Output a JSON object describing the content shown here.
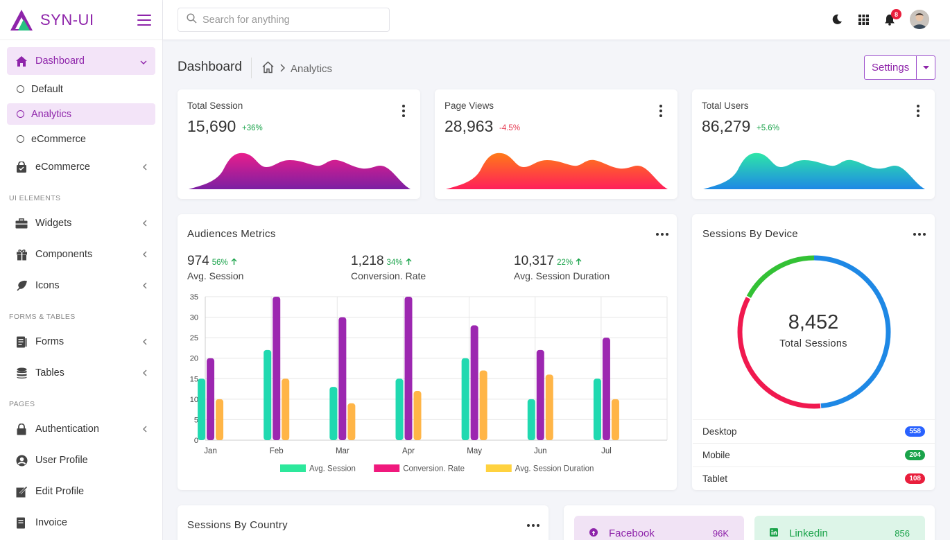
{
  "brand": {
    "name": "SYN-UI"
  },
  "sidebar": {
    "dashboard": {
      "label": "Dashboard"
    },
    "sub_items": [
      {
        "label": "Default"
      },
      {
        "label": "Analytics"
      },
      {
        "label": "eCommerce"
      }
    ],
    "ecommerce": {
      "label": "eCommerce"
    },
    "sections": [
      "UI ELEMENTS",
      "FORMS & TABLES",
      "PAGES"
    ],
    "ui_items": [
      {
        "label": "Widgets"
      },
      {
        "label": "Components"
      },
      {
        "label": "Icons"
      }
    ],
    "form_items": [
      {
        "label": "Forms"
      },
      {
        "label": "Tables"
      }
    ],
    "page_items": [
      {
        "label": "Authentication"
      },
      {
        "label": "User Profile"
      },
      {
        "label": "Edit Profile"
      },
      {
        "label": "Invoice"
      }
    ]
  },
  "search": {
    "placeholder": "Search for anything"
  },
  "topbar": {
    "notification_count": "8"
  },
  "header": {
    "title": "Dashboard",
    "breadcrumb": "Analytics",
    "settings_label": "Settings"
  },
  "stats": [
    {
      "label": "Total Session",
      "value": "15,690",
      "change": "+36%",
      "change_color": "#1aa34a",
      "gradient": [
        "#e91e8c",
        "#7b1fa2"
      ]
    },
    {
      "label": "Page Views",
      "value": "28,963",
      "change": "-4.5%",
      "change_color": "#e53950",
      "gradient": [
        "#ff7a18",
        "#ff1f5a"
      ]
    },
    {
      "label": "Total Users",
      "value": "86,279",
      "change": "+5.6%",
      "change_color": "#1aa34a",
      "gradient": [
        "#2ee6a8",
        "#1e88e5"
      ]
    }
  ],
  "audience": {
    "title": "Audiences Metrics",
    "metrics": [
      {
        "value": "974",
        "pct": "56%",
        "label": "Avg. Session"
      },
      {
        "value": "1,218",
        "pct": "34%",
        "label": "Conversion. Rate"
      },
      {
        "value": "10,317",
        "pct": "22%",
        "label": "Avg. Session Duration"
      }
    ]
  },
  "chart_data": {
    "type": "bar",
    "categories": [
      "Jan",
      "Feb",
      "Mar",
      "Apr",
      "May",
      "Jun",
      "Jul"
    ],
    "series": [
      {
        "name": "Avg. Session",
        "values": [
          15,
          22,
          13,
          15,
          20,
          10,
          15
        ],
        "color": "#20d9b0"
      },
      {
        "name": "Conversion. Rate",
        "values": [
          20,
          35,
          30,
          35,
          28,
          22,
          25
        ],
        "color": "#9c27b0"
      },
      {
        "name": "Avg. Session Duration",
        "values": [
          10,
          15,
          9,
          12,
          17,
          16,
          10
        ],
        "color": "#ffb547"
      }
    ],
    "legend_swatches": [
      "#2de89c",
      "#f0197d",
      "#ffd23f"
    ],
    "yticks": [
      "0",
      "5",
      "10",
      "15",
      "20",
      "25",
      "30",
      "35"
    ],
    "ylim": [
      0,
      35
    ],
    "grid": true,
    "legend": "bottom"
  },
  "device": {
    "title": "Sessions By Device",
    "total_value": "8,452",
    "total_label": "Total Sessions",
    "rows": [
      {
        "label": "Desktop",
        "value": "558",
        "color": "#2962ff"
      },
      {
        "label": "Mobile",
        "value": "204",
        "color": "#1aa34a"
      },
      {
        "label": "Tablet",
        "value": "108",
        "color": "#e91e3c"
      }
    ]
  },
  "country": {
    "title": "Sessions By Country"
  },
  "social": [
    {
      "label": "Facebook",
      "value": "96K",
      "bg": "#f1e3f5",
      "color": "#8e24aa"
    },
    {
      "label": "Linkedin",
      "value": "856",
      "bg": "#ddf5e8",
      "color": "#1aa34a"
    }
  ]
}
